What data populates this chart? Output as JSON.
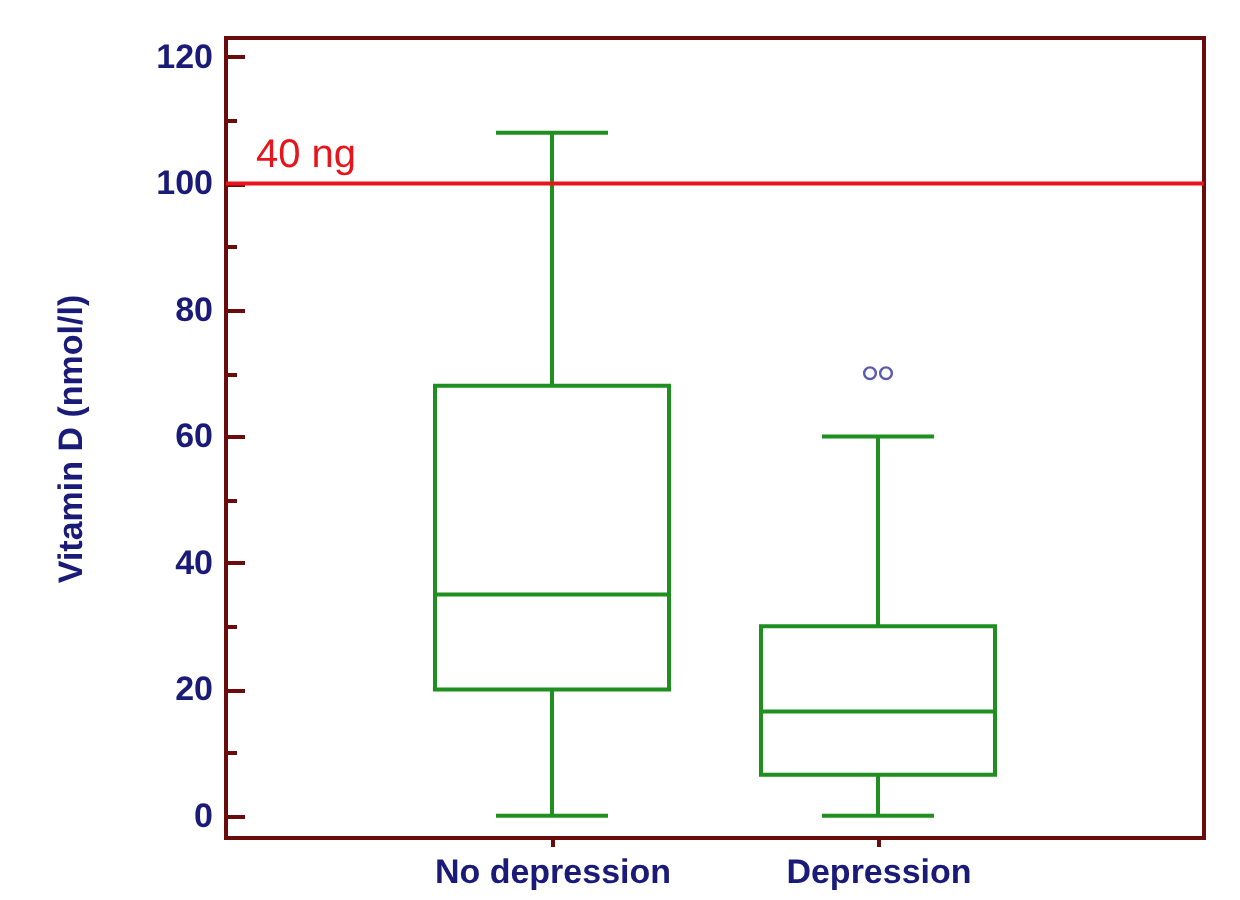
{
  "chart_data": {
    "type": "box",
    "categories": [
      "No depression",
      "Depression"
    ],
    "ylabel": "Vitamin D (nmol/l)",
    "series": [
      {
        "color": "#1f8f1f",
        "boxes": [
          {
            "low": 0,
            "q1": 20,
            "median": 35,
            "q3": 68,
            "high": 108
          },
          {
            "low": 0,
            "q1": 6.5,
            "median": 16.5,
            "q3": 30,
            "high": 60,
            "outliers": [
              70,
              70
            ]
          }
        ]
      }
    ],
    "ylim": [
      -3.5,
      123
    ],
    "yticks": [
      0,
      {
        "value": 10,
        "label": null
      },
      20,
      {
        "value": 30,
        "label": null
      },
      40,
      {
        "value": 50,
        "label": null
      },
      60,
      {
        "value": 70,
        "label": null
      },
      80,
      {
        "value": 90,
        "label": null
      },
      100,
      {
        "value": 110,
        "label": null
      },
      120
    ],
    "ref_lines": [
      {
        "axis": "y",
        "value": 100,
        "label": "40 ng",
        "color": "#e8141c"
      }
    ]
  }
}
